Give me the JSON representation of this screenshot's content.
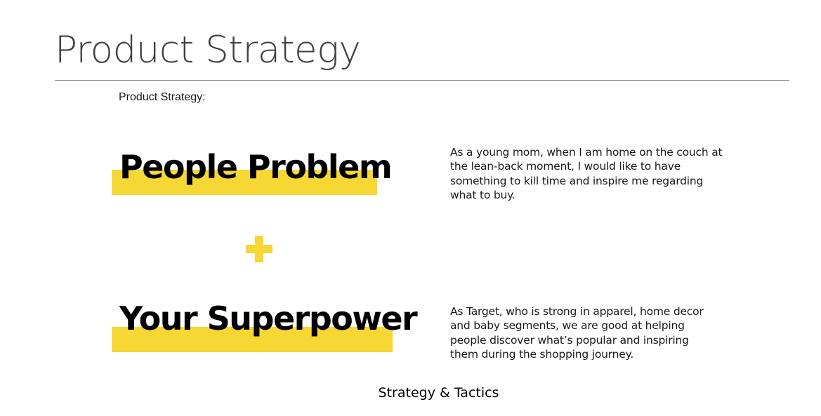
{
  "slide": {
    "title": "Product Strategy",
    "subheading": "Product Strategy:",
    "caption": "Strategy & Tactics"
  },
  "sections": [
    {
      "heading": "People Problem",
      "description_lines": [
        "As a young mom, when I am home on the couch at",
        "the lean-back moment, I would like to have",
        "something to kill time and inspire me regarding",
        "what to buy."
      ]
    },
    {
      "heading": "Your Superpower",
      "description_lines": [
        "As Target, who is strong in apparel, home decor",
        "and baby segments, we are good at helping",
        "people discover what’s popular and inspiring",
        "them during the shopping journey."
      ]
    }
  ],
  "plus_symbol": {
    "icon": "plus-icon"
  },
  "colors": {
    "highlight": "#f7d734",
    "plus": "#f7d734",
    "title_text": "#404040",
    "rule": "#8c8c8c"
  }
}
